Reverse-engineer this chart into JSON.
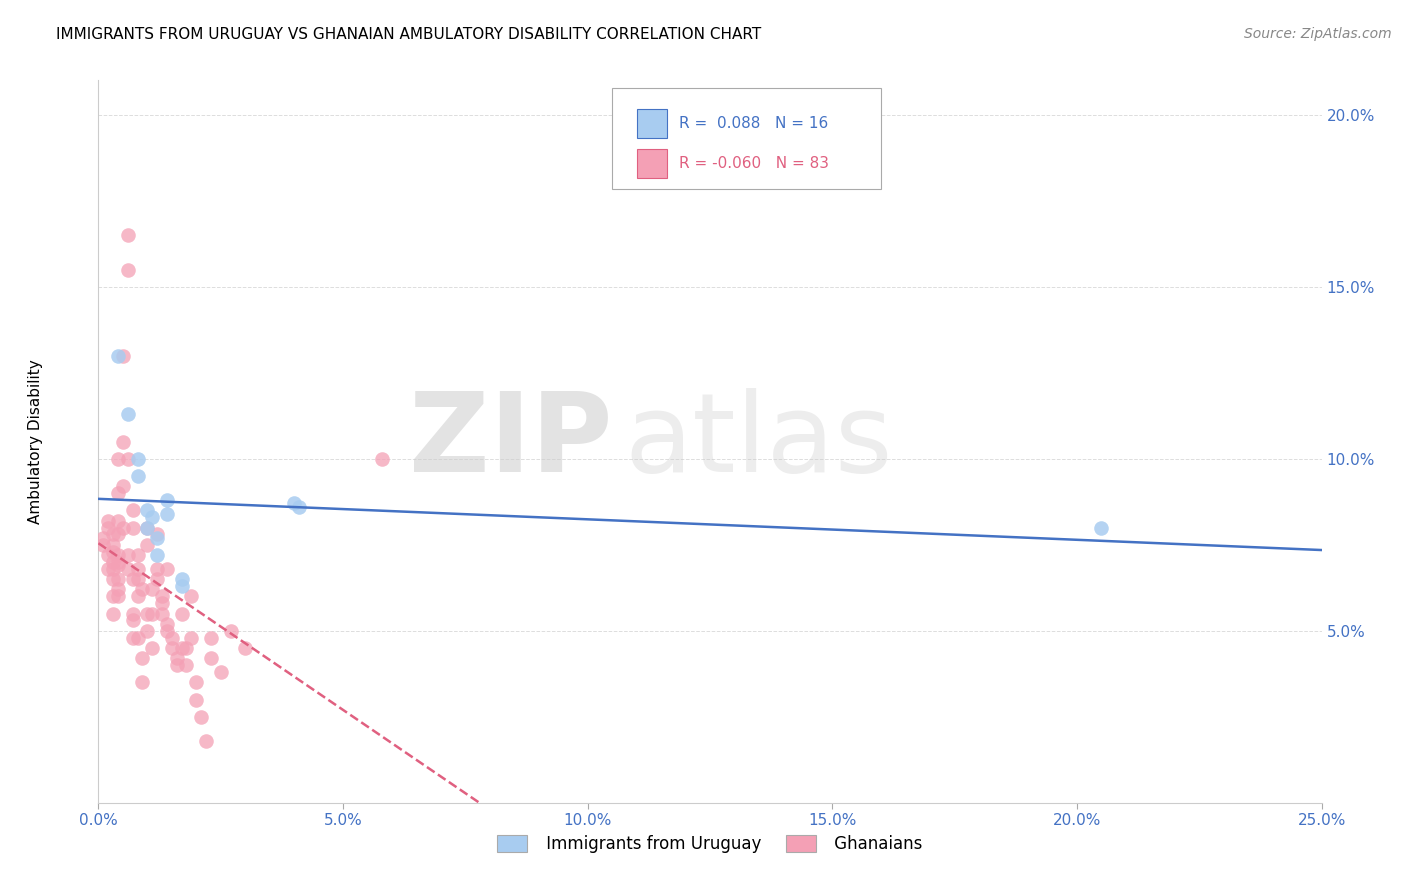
{
  "title": "IMMIGRANTS FROM URUGUAY VS GHANAIAN AMBULATORY DISABILITY CORRELATION CHART",
  "source": "Source: ZipAtlas.com",
  "ylabel": "Ambulatory Disability",
  "xlim": [
    0.0,
    0.25
  ],
  "ylim": [
    0.0,
    0.21
  ],
  "xticks": [
    0.0,
    0.05,
    0.1,
    0.15,
    0.2,
    0.25
  ],
  "yticks": [
    0.05,
    0.1,
    0.15,
    0.2
  ],
  "ytick_labels": [
    "5.0%",
    "10.0%",
    "15.0%",
    "20.0%"
  ],
  "xtick_labels": [
    "0.0%",
    "5.0%",
    "10.0%",
    "15.0%",
    "20.0%",
    "25.0%"
  ],
  "legend_R_blue": "0.088",
  "legend_N_blue": "16",
  "legend_R_pink": "-0.060",
  "legend_N_pink": "83",
  "blue_color": "#A8CCF0",
  "pink_color": "#F4A0B5",
  "line_blue": "#4472C4",
  "line_pink": "#E06080",
  "watermark_zip": "ZIP",
  "watermark_atlas": "atlas",
  "blue_points": [
    [
      0.004,
      0.13
    ],
    [
      0.006,
      0.113
    ],
    [
      0.008,
      0.1
    ],
    [
      0.008,
      0.095
    ],
    [
      0.01,
      0.085
    ],
    [
      0.01,
      0.08
    ],
    [
      0.011,
      0.083
    ],
    [
      0.012,
      0.077
    ],
    [
      0.012,
      0.072
    ],
    [
      0.014,
      0.088
    ],
    [
      0.014,
      0.084
    ],
    [
      0.017,
      0.065
    ],
    [
      0.017,
      0.063
    ],
    [
      0.04,
      0.087
    ],
    [
      0.041,
      0.086
    ],
    [
      0.205,
      0.08
    ]
  ],
  "pink_points": [
    [
      0.001,
      0.077
    ],
    [
      0.001,
      0.075
    ],
    [
      0.002,
      0.08
    ],
    [
      0.002,
      0.072
    ],
    [
      0.002,
      0.068
    ],
    [
      0.002,
      0.082
    ],
    [
      0.003,
      0.07
    ],
    [
      0.003,
      0.075
    ],
    [
      0.003,
      0.065
    ],
    [
      0.003,
      0.06
    ],
    [
      0.003,
      0.055
    ],
    [
      0.003,
      0.073
    ],
    [
      0.003,
      0.068
    ],
    [
      0.004,
      0.062
    ],
    [
      0.004,
      0.072
    ],
    [
      0.004,
      0.082
    ],
    [
      0.004,
      0.09
    ],
    [
      0.004,
      0.1
    ],
    [
      0.004,
      0.06
    ],
    [
      0.004,
      0.065
    ],
    [
      0.004,
      0.07
    ],
    [
      0.004,
      0.078
    ],
    [
      0.005,
      0.092
    ],
    [
      0.005,
      0.08
    ],
    [
      0.005,
      0.13
    ],
    [
      0.005,
      0.105
    ],
    [
      0.006,
      0.155
    ],
    [
      0.006,
      0.165
    ],
    [
      0.006,
      0.1
    ],
    [
      0.006,
      0.072
    ],
    [
      0.006,
      0.068
    ],
    [
      0.007,
      0.08
    ],
    [
      0.007,
      0.085
    ],
    [
      0.007,
      0.065
    ],
    [
      0.007,
      0.055
    ],
    [
      0.007,
      0.053
    ],
    [
      0.007,
      0.048
    ],
    [
      0.008,
      0.065
    ],
    [
      0.008,
      0.06
    ],
    [
      0.008,
      0.072
    ],
    [
      0.008,
      0.068
    ],
    [
      0.008,
      0.048
    ],
    [
      0.009,
      0.042
    ],
    [
      0.009,
      0.035
    ],
    [
      0.009,
      0.062
    ],
    [
      0.01,
      0.055
    ],
    [
      0.01,
      0.05
    ],
    [
      0.01,
      0.08
    ],
    [
      0.01,
      0.075
    ],
    [
      0.011,
      0.045
    ],
    [
      0.011,
      0.055
    ],
    [
      0.011,
      0.062
    ],
    [
      0.012,
      0.068
    ],
    [
      0.012,
      0.078
    ],
    [
      0.012,
      0.065
    ],
    [
      0.013,
      0.06
    ],
    [
      0.013,
      0.058
    ],
    [
      0.013,
      0.055
    ],
    [
      0.014,
      0.05
    ],
    [
      0.014,
      0.052
    ],
    [
      0.014,
      0.068
    ],
    [
      0.015,
      0.048
    ],
    [
      0.015,
      0.045
    ],
    [
      0.016,
      0.042
    ],
    [
      0.016,
      0.04
    ],
    [
      0.017,
      0.055
    ],
    [
      0.017,
      0.045
    ],
    [
      0.018,
      0.04
    ],
    [
      0.018,
      0.045
    ],
    [
      0.019,
      0.048
    ],
    [
      0.019,
      0.06
    ],
    [
      0.02,
      0.035
    ],
    [
      0.02,
      0.03
    ],
    [
      0.021,
      0.025
    ],
    [
      0.022,
      0.018
    ],
    [
      0.023,
      0.048
    ],
    [
      0.023,
      0.042
    ],
    [
      0.025,
      0.038
    ],
    [
      0.027,
      0.05
    ],
    [
      0.03,
      0.045
    ],
    [
      0.058,
      0.1
    ],
    [
      0.003,
      0.078
    ],
    [
      0.004,
      0.069
    ]
  ]
}
